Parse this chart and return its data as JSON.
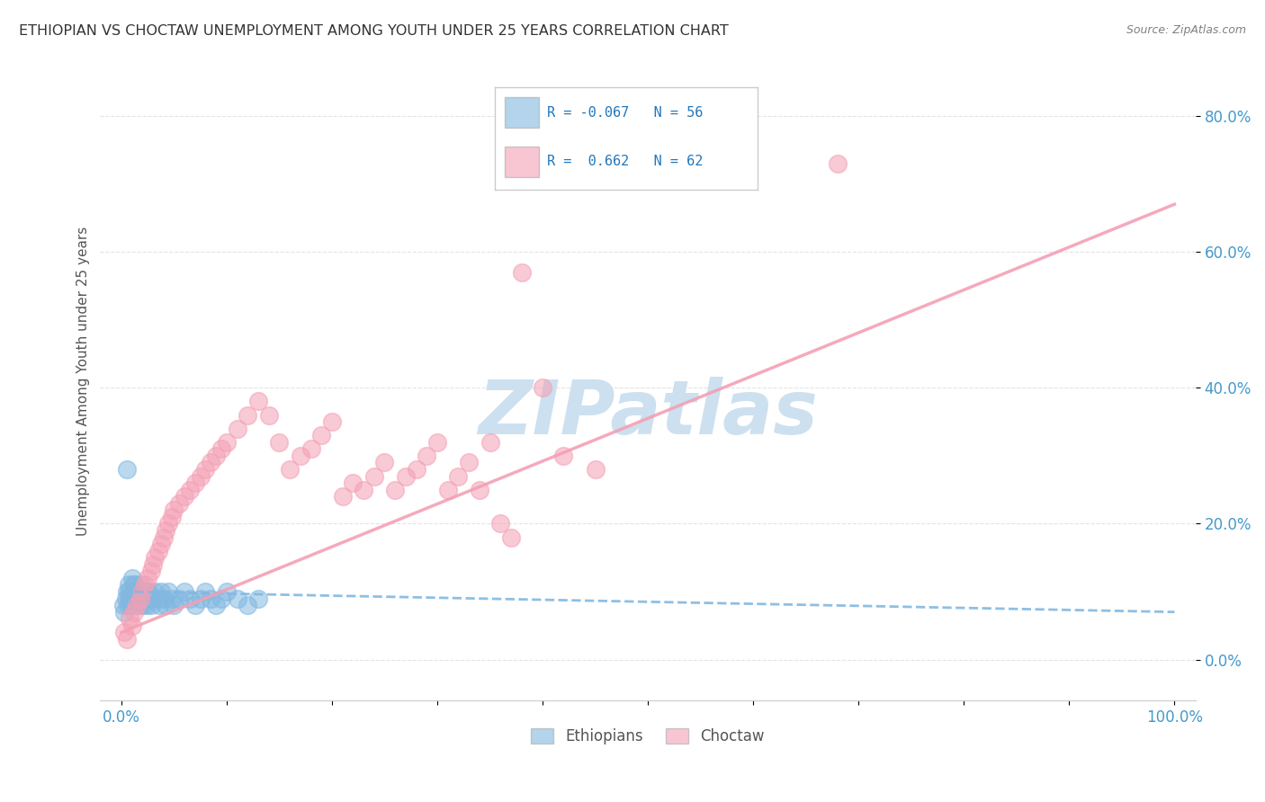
{
  "title": "ETHIOPIAN VS CHOCTAW UNEMPLOYMENT AMONG YOUTH UNDER 25 YEARS CORRELATION CHART",
  "source": "Source: ZipAtlas.com",
  "ylabel": "Unemployment Among Youth under 25 years",
  "xlim": [
    -0.02,
    1.02
  ],
  "ylim": [
    -0.06,
    0.88
  ],
  "y_ticks": [
    0.0,
    0.2,
    0.4,
    0.6,
    0.8
  ],
  "y_tick_labels": [
    "0.0%",
    "20.0%",
    "40.0%",
    "60.0%",
    "80.0%"
  ],
  "x_tick_labels": [
    "0.0%",
    "100.0%"
  ],
  "ethiopians_color": "#82b8e0",
  "choctaw_color": "#f4a0b5",
  "ethiopians_R": -0.067,
  "ethiopians_N": 56,
  "choctaw_R": 0.662,
  "choctaw_N": 62,
  "watermark": "ZIPatlas",
  "legend_label_1": "Ethiopians",
  "legend_label_2": "Choctaw",
  "ethiopians_scatter_x": [
    0.002,
    0.003,
    0.004,
    0.005,
    0.006,
    0.007,
    0.008,
    0.009,
    0.01,
    0.011,
    0.012,
    0.013,
    0.014,
    0.015,
    0.016,
    0.017,
    0.018,
    0.019,
    0.02,
    0.021,
    0.022,
    0.023,
    0.024,
    0.025,
    0.026,
    0.028,
    0.03,
    0.032,
    0.034,
    0.036,
    0.038,
    0.04,
    0.042,
    0.045,
    0.048,
    0.05,
    0.055,
    0.06,
    0.065,
    0.07,
    0.075,
    0.08,
    0.085,
    0.09,
    0.095,
    0.1,
    0.11,
    0.12,
    0.13,
    0.005,
    0.007,
    0.009,
    0.011,
    0.015,
    0.02,
    0.025
  ],
  "ethiopians_scatter_y": [
    0.08,
    0.07,
    0.09,
    0.1,
    0.08,
    0.11,
    0.09,
    0.08,
    0.12,
    0.1,
    0.09,
    0.11,
    0.08,
    0.1,
    0.09,
    0.08,
    0.11,
    0.09,
    0.1,
    0.08,
    0.09,
    0.1,
    0.08,
    0.09,
    0.1,
    0.08,
    0.09,
    0.1,
    0.09,
    0.08,
    0.1,
    0.09,
    0.08,
    0.1,
    0.09,
    0.08,
    0.09,
    0.1,
    0.09,
    0.08,
    0.09,
    0.1,
    0.09,
    0.08,
    0.09,
    0.1,
    0.09,
    0.08,
    0.09,
    0.28,
    0.1,
    0.09,
    0.11,
    0.1,
    0.09,
    0.1
  ],
  "choctaw_scatter_x": [
    0.003,
    0.005,
    0.008,
    0.01,
    0.012,
    0.015,
    0.018,
    0.02,
    0.022,
    0.025,
    0.028,
    0.03,
    0.032,
    0.035,
    0.038,
    0.04,
    0.042,
    0.045,
    0.048,
    0.05,
    0.055,
    0.06,
    0.065,
    0.07,
    0.075,
    0.08,
    0.085,
    0.09,
    0.095,
    0.1,
    0.11,
    0.12,
    0.13,
    0.14,
    0.15,
    0.16,
    0.17,
    0.18,
    0.19,
    0.2,
    0.21,
    0.22,
    0.23,
    0.24,
    0.25,
    0.26,
    0.27,
    0.28,
    0.29,
    0.3,
    0.31,
    0.32,
    0.33,
    0.34,
    0.35,
    0.36,
    0.37,
    0.38,
    0.4,
    0.42,
    0.45,
    0.68
  ],
  "choctaw_scatter_y": [
    0.04,
    0.03,
    0.06,
    0.05,
    0.07,
    0.08,
    0.09,
    0.1,
    0.11,
    0.12,
    0.13,
    0.14,
    0.15,
    0.16,
    0.17,
    0.18,
    0.19,
    0.2,
    0.21,
    0.22,
    0.23,
    0.24,
    0.25,
    0.26,
    0.27,
    0.28,
    0.29,
    0.3,
    0.31,
    0.32,
    0.34,
    0.36,
    0.38,
    0.36,
    0.32,
    0.28,
    0.3,
    0.31,
    0.33,
    0.35,
    0.24,
    0.26,
    0.25,
    0.27,
    0.29,
    0.25,
    0.27,
    0.28,
    0.3,
    0.32,
    0.25,
    0.27,
    0.29,
    0.25,
    0.32,
    0.2,
    0.18,
    0.57,
    0.4,
    0.3,
    0.28,
    0.73
  ],
  "trendline_eth_intercept": 0.1,
  "trendline_eth_slope": -0.03,
  "trendline_cho_intercept": 0.04,
  "trendline_cho_slope": 0.63,
  "background_color": "#ffffff",
  "grid_color": "#e0e0e0",
  "title_color": "#333333",
  "axis_label_color": "#555555",
  "tick_color": "#4499cc",
  "watermark_color": "#cce0f0",
  "watermark_fontsize": 60
}
